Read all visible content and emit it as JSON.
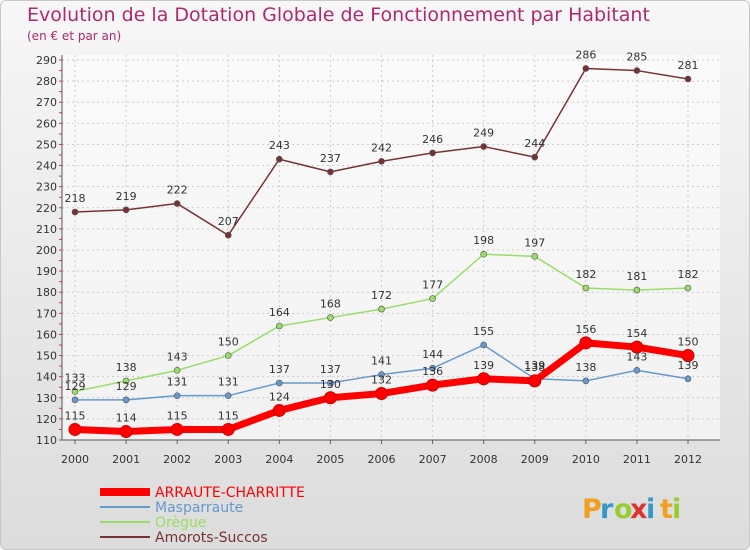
{
  "chart_data": {
    "type": "line",
    "title": "Evolution de la Dotation Globale de Fonctionnement par Habitant",
    "subtitle": "(en € et par an)",
    "x": [
      "2000",
      "2001",
      "2002",
      "2003",
      "2004",
      "2005",
      "2006",
      "2007",
      "2008",
      "2009",
      "2010",
      "2011",
      "2012"
    ],
    "ylim": [
      110,
      290
    ],
    "yticks": [
      110,
      120,
      130,
      140,
      150,
      160,
      170,
      180,
      190,
      200,
      210,
      220,
      230,
      240,
      250,
      260,
      270,
      280,
      290
    ],
    "grid": true,
    "legend_position": "bottom-left",
    "series": [
      {
        "name": "ARRAUTE-CHARRITTE",
        "color": "#ff0000",
        "values": [
          115,
          114,
          115,
          115,
          124,
          130,
          132,
          136,
          139,
          138,
          156,
          154,
          150
        ]
      },
      {
        "name": "Masparraute",
        "color": "#6699cc",
        "values": [
          129,
          129,
          131,
          131,
          137,
          137,
          141,
          144,
          155,
          139,
          138,
          143,
          139
        ]
      },
      {
        "name": "Orègue",
        "color": "#99dd66",
        "values": [
          133,
          138,
          143,
          150,
          164,
          168,
          172,
          177,
          198,
          197,
          182,
          181,
          182
        ]
      },
      {
        "name": "Amorots-Succos",
        "color": "#773333",
        "values": [
          218,
          219,
          222,
          207,
          243,
          237,
          242,
          246,
          249,
          244,
          286,
          285,
          281
        ]
      }
    ]
  },
  "brand": {
    "parts": [
      "P",
      "r",
      "o",
      "x",
      "i",
      "t",
      "i"
    ],
    "colors": [
      "#f0a020",
      "#3399cc",
      "#99cc33",
      "#dd3333",
      "#3399cc",
      "#f0a020",
      "#99cc33"
    ]
  }
}
